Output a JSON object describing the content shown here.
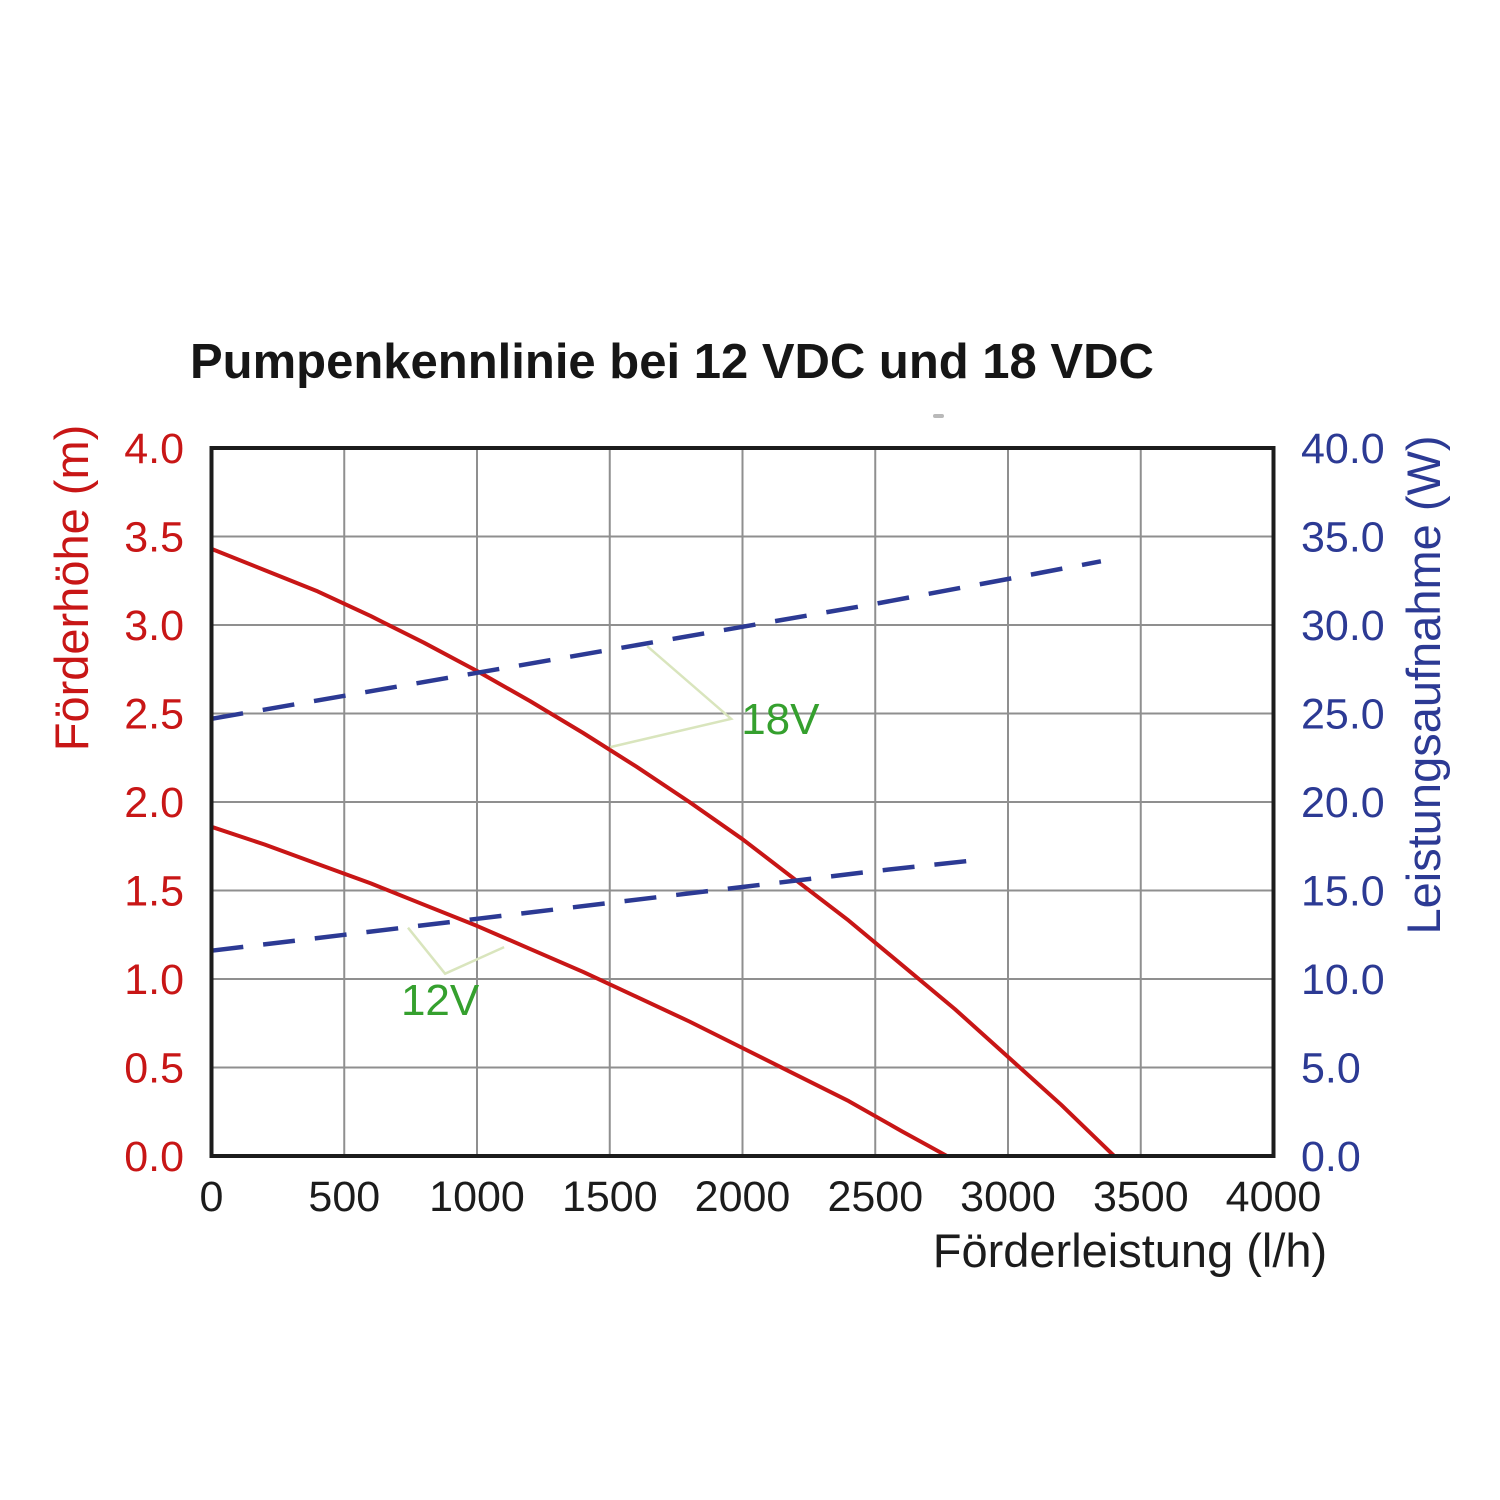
{
  "title": "Pumpenkennlinie bei 12 VDC und 18 VDC",
  "colors": {
    "head_curve": "#c81616",
    "left_axis_text": "#c81616",
    "power_curve": "#2c3a94",
    "right_axis_text": "#2c3a94",
    "x_axis_text": "#1c1c1c",
    "grid": "#8f8f8f",
    "plot_border": "#1c1c1c",
    "annotation_text": "#35a02e",
    "annotation_leader": "#d9e5bd",
    "background": "#ffffff",
    "stray_mark": "#b9b9b9"
  },
  "chart_data": {
    "type": "line",
    "title": "Pumpenkennlinie bei 12 VDC und 18 VDC",
    "grid": true,
    "x_axis": {
      "label": "Förderleistung (l/h)",
      "min": 0,
      "max": 4000,
      "tick_step": 500,
      "tick_labels": [
        "0",
        "500",
        "1000",
        "1500",
        "2000",
        "2500",
        "3000",
        "3500",
        "4000"
      ]
    },
    "y_axis_left": {
      "label": "Förderhöhe (m)",
      "min": 0.0,
      "max": 4.0,
      "tick_step": 0.5,
      "tick_labels": [
        "0.0",
        "0.5",
        "1.0",
        "1.5",
        "2.0",
        "2.5",
        "3.0",
        "3.5",
        "4.0"
      ]
    },
    "y_axis_right": {
      "label": "Leistungsaufnahme (W)",
      "min": 0.0,
      "max": 40.0,
      "tick_step": 5.0,
      "tick_labels": [
        "0.0",
        "5.0",
        "10.0",
        "15.0",
        "20.0",
        "25.0",
        "30.0",
        "35.0",
        "40.0"
      ]
    },
    "series": [
      {
        "id": "head-18v",
        "name": "Förderhöhe 18 VDC",
        "axis": "left",
        "style": "solid",
        "color_key": "head_curve",
        "points": [
          [
            0,
            3.43
          ],
          [
            200,
            3.31
          ],
          [
            400,
            3.19
          ],
          [
            600,
            3.05
          ],
          [
            800,
            2.9
          ],
          [
            1000,
            2.74
          ],
          [
            1200,
            2.57
          ],
          [
            1400,
            2.39
          ],
          [
            1600,
            2.2
          ],
          [
            1800,
            2.0
          ],
          [
            2000,
            1.79
          ],
          [
            2200,
            1.56
          ],
          [
            2400,
            1.33
          ],
          [
            2600,
            1.08
          ],
          [
            2800,
            0.83
          ],
          [
            3000,
            0.56
          ],
          [
            3200,
            0.29
          ],
          [
            3400,
            0.0
          ]
        ]
      },
      {
        "id": "head-12v",
        "name": "Förderhöhe 12 VDC",
        "axis": "left",
        "style": "solid",
        "color_key": "head_curve",
        "points": [
          [
            0,
            1.86
          ],
          [
            200,
            1.76
          ],
          [
            400,
            1.65
          ],
          [
            600,
            1.54
          ],
          [
            800,
            1.42
          ],
          [
            1000,
            1.3
          ],
          [
            1200,
            1.17
          ],
          [
            1400,
            1.04
          ],
          [
            1600,
            0.9
          ],
          [
            1800,
            0.76
          ],
          [
            2000,
            0.61
          ],
          [
            2200,
            0.46
          ],
          [
            2400,
            0.31
          ],
          [
            2600,
            0.14
          ],
          [
            2770,
            0.0
          ]
        ]
      },
      {
        "id": "power-18v",
        "name": "Leistungsaufnahme 18 VDC",
        "axis": "right",
        "style": "dashed",
        "color_key": "power_curve",
        "points": [
          [
            0,
            24.7
          ],
          [
            500,
            26.0
          ],
          [
            1000,
            27.3
          ],
          [
            1500,
            28.6
          ],
          [
            2000,
            29.9
          ],
          [
            2500,
            31.2
          ],
          [
            3000,
            32.6
          ],
          [
            3350,
            33.6
          ]
        ]
      },
      {
        "id": "power-12v",
        "name": "Leistungsaufnahme 12 VDC",
        "axis": "right",
        "style": "dashed",
        "color_key": "power_curve",
        "points": [
          [
            0,
            11.6
          ],
          [
            500,
            12.5
          ],
          [
            1000,
            13.4
          ],
          [
            1500,
            14.3
          ],
          [
            2000,
            15.2
          ],
          [
            2500,
            16.1
          ],
          [
            2870,
            16.7
          ]
        ]
      }
    ],
    "annotations": [
      {
        "id": "label-18v",
        "text": "18V",
        "anchor": "start",
        "text_pos": [
          1995,
          2.47
        ],
        "leader_points": [
          [
            1641,
            2.88
          ],
          [
            1957,
            2.47
          ],
          [
            1502,
            2.31
          ]
        ]
      },
      {
        "id": "label-12v",
        "text": "12V",
        "anchor": "middle",
        "text_pos": [
          861,
          0.88
        ],
        "leader_points": [
          [
            740,
            1.29
          ],
          [
            880,
            1.03
          ],
          [
            1102,
            1.18
          ]
        ]
      }
    ]
  }
}
